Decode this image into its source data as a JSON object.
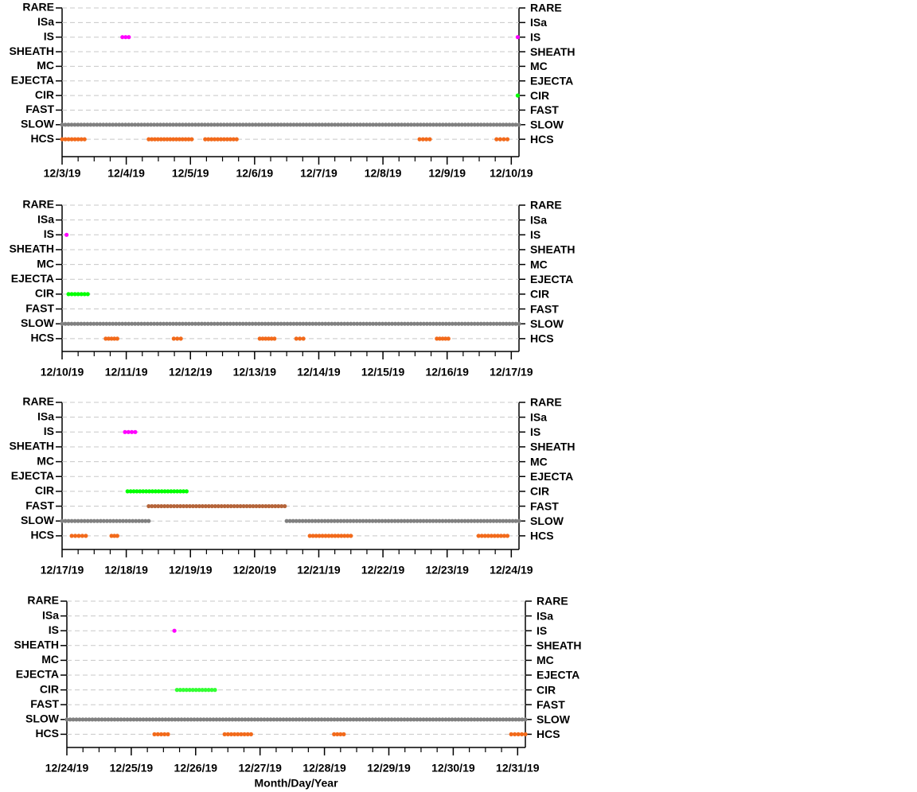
{
  "chart_data": [
    {
      "type": "timeline",
      "xlim": [
        3,
        10.12
      ],
      "xticks": [
        {
          "value": 3,
          "label": "12/3/19"
        },
        {
          "value": 4,
          "label": "12/4/19"
        },
        {
          "value": 5,
          "label": "12/5/19"
        },
        {
          "value": 6,
          "label": "12/6/19"
        },
        {
          "value": 7,
          "label": "12/7/19"
        },
        {
          "value": 8,
          "label": "12/8/19"
        },
        {
          "value": 9,
          "label": "12/9/19"
        },
        {
          "value": 10,
          "label": "12/10/19"
        }
      ],
      "rows": [
        {
          "label": "RARE",
          "color": "#808080",
          "intervals": []
        },
        {
          "label": "ISa",
          "color": "#808080",
          "intervals": []
        },
        {
          "label": "IS",
          "color": "#ff00ff",
          "intervals": [
            [
              3.94,
              4.04
            ],
            [
              10.1,
              10.1
            ]
          ]
        },
        {
          "label": "SHEATH",
          "color": "#808080",
          "intervals": []
        },
        {
          "label": "MC",
          "color": "#808080",
          "intervals": []
        },
        {
          "label": "EJECTA",
          "color": "#808080",
          "intervals": []
        },
        {
          "label": "CIR",
          "color": "#00ff00",
          "intervals": [
            [
              10.1,
              10.1
            ]
          ]
        },
        {
          "label": "FAST",
          "color": "#b5653a",
          "intervals": []
        },
        {
          "label": "SLOW",
          "color": "#808080",
          "intervals": [
            [
              3,
              10.12
            ]
          ]
        },
        {
          "label": "HCS",
          "color": "#f26a1b",
          "intervals": [
            [
              3,
              3.35
            ],
            [
              4.35,
              5.02
            ],
            [
              5.23,
              5.72
            ],
            [
              8.57,
              8.73
            ],
            [
              9.77,
              9.94
            ]
          ]
        }
      ]
    },
    {
      "type": "timeline",
      "xlim": [
        10,
        17.12
      ],
      "xticks": [
        {
          "value": 10,
          "label": "12/10/19"
        },
        {
          "value": 11,
          "label": "12/11/19"
        },
        {
          "value": 12,
          "label": "12/12/19"
        },
        {
          "value": 13,
          "label": "12/13/19"
        },
        {
          "value": 14,
          "label": "12/14/19"
        },
        {
          "value": 15,
          "label": "12/15/19"
        },
        {
          "value": 16,
          "label": "12/16/19"
        },
        {
          "value": 17,
          "label": "12/17/19"
        }
      ],
      "rows": [
        {
          "label": "RARE",
          "color": "#808080",
          "intervals": []
        },
        {
          "label": "ISa",
          "color": "#808080",
          "intervals": []
        },
        {
          "label": "IS",
          "color": "#ff00ff",
          "intervals": [
            [
              10.07,
              10.07
            ]
          ]
        },
        {
          "label": "SHEATH",
          "color": "#808080",
          "intervals": []
        },
        {
          "label": "MC",
          "color": "#808080",
          "intervals": []
        },
        {
          "label": "EJECTA",
          "color": "#808080",
          "intervals": []
        },
        {
          "label": "CIR",
          "color": "#00ff00",
          "intervals": [
            [
              10.1,
              10.4
            ]
          ]
        },
        {
          "label": "FAST",
          "color": "#b5653a",
          "intervals": []
        },
        {
          "label": "SLOW",
          "color": "#808080",
          "intervals": [
            [
              10,
              17.12
            ]
          ]
        },
        {
          "label": "HCS",
          "color": "#f26a1b",
          "intervals": [
            [
              10.68,
              10.86
            ],
            [
              11.74,
              11.85
            ],
            [
              13.08,
              13.31
            ],
            [
              13.65,
              13.76
            ],
            [
              15.84,
              16.02
            ]
          ]
        }
      ]
    },
    {
      "type": "timeline",
      "xlim": [
        17,
        24.12
      ],
      "xticks": [
        {
          "value": 17,
          "label": "12/17/19"
        },
        {
          "value": 18,
          "label": "12/18/19"
        },
        {
          "value": 19,
          "label": "12/19/19"
        },
        {
          "value": 20,
          "label": "12/20/19"
        },
        {
          "value": 21,
          "label": "12/21/19"
        },
        {
          "value": 22,
          "label": "12/22/19"
        },
        {
          "value": 23,
          "label": "12/23/19"
        },
        {
          "value": 24,
          "label": "12/24/19"
        }
      ],
      "rows": [
        {
          "label": "RARE",
          "color": "#808080",
          "intervals": []
        },
        {
          "label": "ISa",
          "color": "#808080",
          "intervals": []
        },
        {
          "label": "IS",
          "color": "#ff00ff",
          "intervals": [
            [
              17.98,
              18.14
            ]
          ]
        },
        {
          "label": "SHEATH",
          "color": "#808080",
          "intervals": []
        },
        {
          "label": "MC",
          "color": "#808080",
          "intervals": []
        },
        {
          "label": "EJECTA",
          "color": "#808080",
          "intervals": []
        },
        {
          "label": "CIR",
          "color": "#00ff00",
          "intervals": [
            [
              18.02,
              18.94
            ]
          ]
        },
        {
          "label": "FAST",
          "color": "#b5653a",
          "intervals": [
            [
              18.35,
              20.47
            ]
          ]
        },
        {
          "label": "SLOW",
          "color": "#808080",
          "intervals": [
            [
              17,
              18.35
            ],
            [
              20.5,
              24.12
            ]
          ]
        },
        {
          "label": "HCS",
          "color": "#f26a1b",
          "intervals": [
            [
              17.15,
              17.37
            ],
            [
              17.77,
              17.86
            ],
            [
              20.86,
              21.5
            ],
            [
              23.49,
              23.94
            ]
          ]
        }
      ]
    },
    {
      "type": "timeline",
      "xlim": [
        24,
        31.12
      ],
      "xlabel": "Month/Day/Year",
      "xticks": [
        {
          "value": 24,
          "label": "12/24/19"
        },
        {
          "value": 25,
          "label": "12/25/19"
        },
        {
          "value": 26,
          "label": "12/26/19"
        },
        {
          "value": 27,
          "label": "12/27/19"
        },
        {
          "value": 28,
          "label": "12/28/19"
        },
        {
          "value": 29,
          "label": "12/29/19"
        },
        {
          "value": 30,
          "label": "12/30/19"
        },
        {
          "value": 31,
          "label": "12/31/19"
        }
      ],
      "rows": [
        {
          "label": "RARE",
          "color": "#808080",
          "intervals": []
        },
        {
          "label": "ISa",
          "color": "#808080",
          "intervals": []
        },
        {
          "label": "IS",
          "color": "#ff00ff",
          "intervals": [
            [
              25.67,
              25.67
            ]
          ]
        },
        {
          "label": "SHEATH",
          "color": "#808080",
          "intervals": []
        },
        {
          "label": "MC",
          "color": "#808080",
          "intervals": []
        },
        {
          "label": "EJECTA",
          "color": "#808080",
          "intervals": []
        },
        {
          "label": "CIR",
          "color": "#33ff33",
          "intervals": [
            [
              25.71,
              26.3
            ]
          ]
        },
        {
          "label": "FAST",
          "color": "#b5653a",
          "intervals": []
        },
        {
          "label": "SLOW",
          "color": "#808080",
          "intervals": [
            [
              24,
              31.12
            ]
          ]
        },
        {
          "label": "HCS",
          "color": "#f26a1b",
          "intervals": [
            [
              25.36,
              25.57
            ],
            [
              26.45,
              26.86
            ],
            [
              28.15,
              28.3
            ],
            [
              30.9,
              31.12
            ]
          ]
        }
      ]
    }
  ]
}
